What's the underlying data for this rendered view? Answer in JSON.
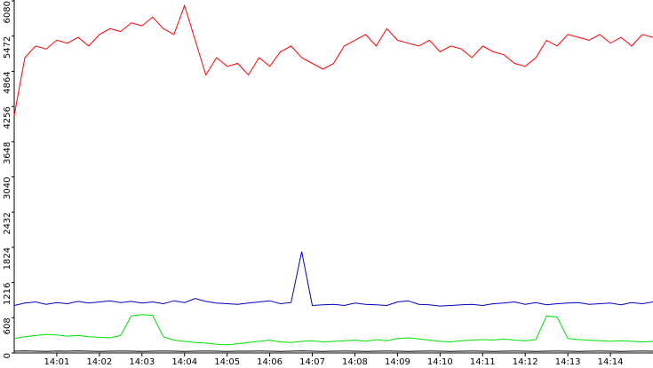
{
  "chart_data": {
    "type": "line",
    "x": [
      "14:00:00",
      "14:00:15",
      "14:00:30",
      "14:00:45",
      "14:01:00",
      "14:01:15",
      "14:01:30",
      "14:01:45",
      "14:02:00",
      "14:02:15",
      "14:02:30",
      "14:02:45",
      "14:03:00",
      "14:03:15",
      "14:03:30",
      "14:03:45",
      "14:04:00",
      "14:04:15",
      "14:04:30",
      "14:04:45",
      "14:05:00",
      "14:05:15",
      "14:05:30",
      "14:05:45",
      "14:06:00",
      "14:06:15",
      "14:06:30",
      "14:06:45",
      "14:07:00",
      "14:07:15",
      "14:07:30",
      "14:07:45",
      "14:08:00",
      "14:08:15",
      "14:08:30",
      "14:08:45",
      "14:09:00",
      "14:09:15",
      "14:09:30",
      "14:09:45",
      "14:10:00",
      "14:10:15",
      "14:10:30",
      "14:10:45",
      "14:11:00",
      "14:11:15",
      "14:11:30",
      "14:11:45",
      "14:12:00",
      "14:12:15",
      "14:12:30",
      "14:12:45",
      "14:13:00",
      "14:13:15",
      "14:13:30",
      "14:13:45",
      "14:14:00",
      "14:14:15",
      "14:14:30",
      "14:14:45",
      "14:15:00"
    ],
    "series": [
      {
        "name": "red",
        "color": "#ff0000",
        "values": [
          4100,
          5100,
          5300,
          5250,
          5400,
          5350,
          5450,
          5300,
          5500,
          5600,
          5550,
          5700,
          5650,
          5800,
          5600,
          5500,
          6000,
          5400,
          4800,
          5100,
          4950,
          5000,
          4800,
          5100,
          4950,
          5200,
          5300,
          5100,
          5000,
          4900,
          5000,
          5300,
          5400,
          5500,
          5300,
          5600,
          5400,
          5350,
          5300,
          5400,
          5200,
          5300,
          5250,
          5100,
          5300,
          5200,
          5150,
          5000,
          4950,
          5100,
          5400,
          5300,
          5500,
          5450,
          5400,
          5500,
          5350,
          5450,
          5300,
          5500,
          5450
        ]
      },
      {
        "name": "blue",
        "color": "#0000c0",
        "values": [
          820,
          860,
          880,
          840,
          870,
          850,
          890,
          860,
          880,
          900,
          870,
          890,
          860,
          880,
          850,
          900,
          870,
          940,
          890,
          860,
          850,
          840,
          860,
          880,
          900,
          850,
          870,
          1750,
          820,
          830,
          840,
          820,
          860,
          840,
          830,
          820,
          880,
          900,
          840,
          830,
          810,
          820,
          830,
          840,
          820,
          850,
          860,
          880,
          840,
          870,
          830,
          850,
          860,
          870,
          840,
          850,
          860,
          830,
          870,
          850,
          880
        ]
      },
      {
        "name": "green",
        "color": "#00e000",
        "values": [
          250,
          280,
          300,
          320,
          310,
          290,
          300,
          280,
          270,
          260,
          300,
          640,
          660,
          650,
          280,
          220,
          200,
          180,
          170,
          150,
          140,
          160,
          180,
          200,
          220,
          190,
          180,
          200,
          210,
          190,
          200,
          210,
          220,
          200,
          230,
          210,
          250,
          260,
          240,
          220,
          200,
          190,
          210,
          220,
          230,
          220,
          240,
          220,
          210,
          230,
          640,
          620,
          250,
          230,
          220,
          210,
          200,
          210,
          200,
          190,
          200
        ]
      },
      {
        "name": "black",
        "color": "#000000",
        "values": [
          30,
          35,
          30,
          28,
          32,
          30,
          35,
          30,
          28,
          30,
          32,
          30,
          28,
          30,
          32,
          30,
          28,
          30,
          32,
          30,
          28,
          30,
          30,
          32,
          30,
          28,
          30,
          35,
          30,
          28,
          30,
          32,
          30,
          28,
          30,
          32,
          30,
          28,
          30,
          32,
          30,
          28,
          30,
          32,
          30,
          28,
          30,
          32,
          30,
          28,
          30,
          32,
          30,
          28,
          30,
          32,
          30,
          28,
          30,
          32,
          30
        ]
      }
    ],
    "xlim": [
      "14:00:00",
      "14:15:00"
    ],
    "xticks": [
      "14:01",
      "14:02",
      "14:03",
      "14:04",
      "14:05",
      "14:06",
      "14:07",
      "14:08",
      "14:09",
      "14:10",
      "14:11",
      "14:12",
      "14:13",
      "14:14"
    ],
    "ylim": [
      0,
      6080
    ],
    "yticks": [
      0,
      608,
      1216,
      1824,
      2432,
      3040,
      3648,
      4256,
      4864,
      5472,
      6080
    ]
  }
}
